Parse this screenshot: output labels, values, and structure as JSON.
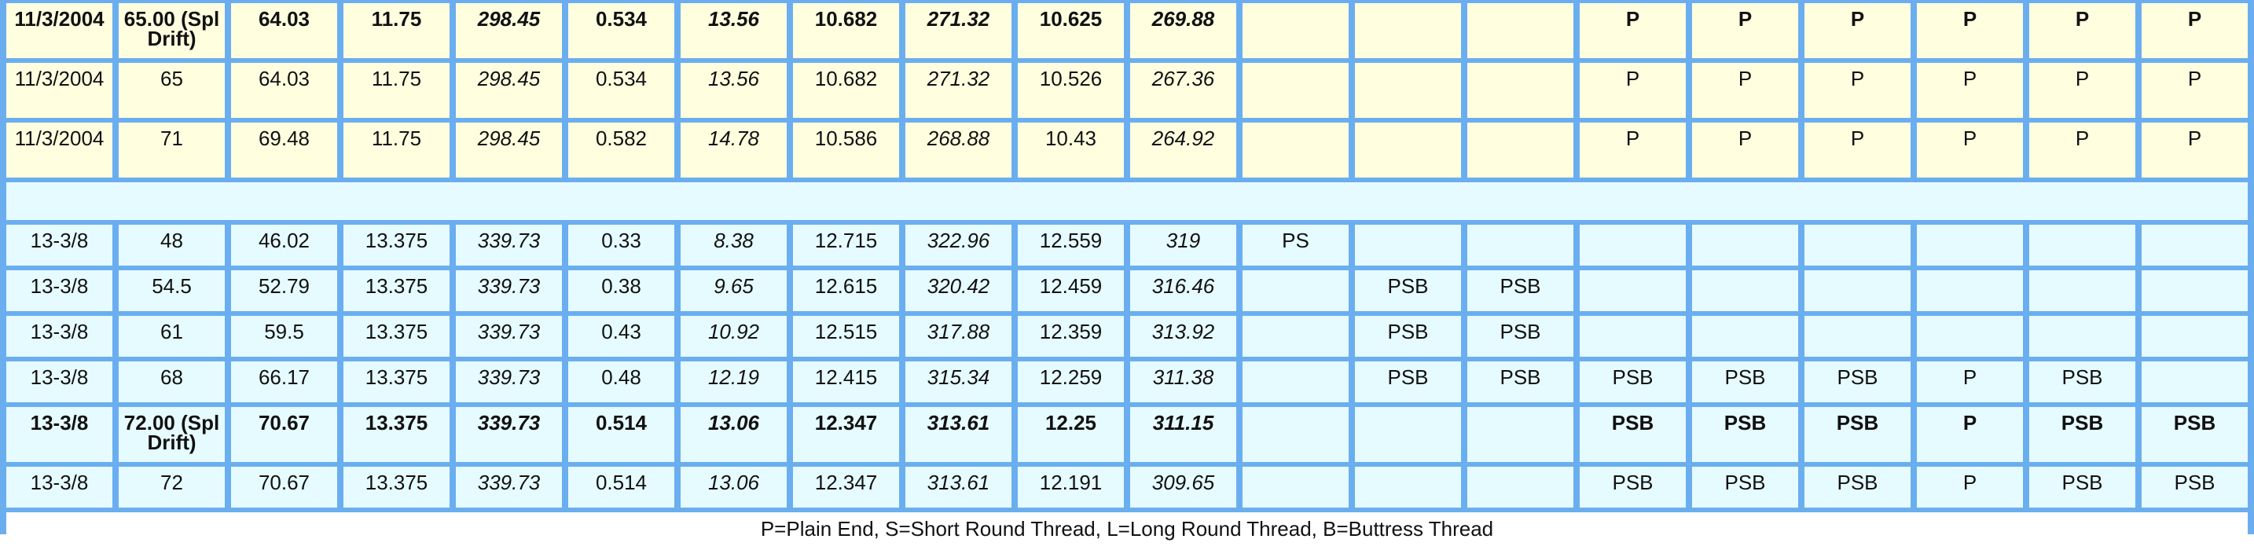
{
  "rows": [
    {
      "style": "yellow",
      "bold": true,
      "cells": [
        "11/3/2004",
        "65.00 (Spl Drift)",
        "64.03",
        "11.75",
        "298.45",
        "0.534",
        "13.56",
        "10.682",
        "271.32",
        "10.625",
        "269.88",
        "",
        "",
        "",
        "P",
        "P",
        "P",
        "P",
        "P",
        "P"
      ]
    },
    {
      "style": "yellow",
      "bold": false,
      "cells": [
        "11/3/2004",
        "65",
        "64.03",
        "11.75",
        "298.45",
        "0.534",
        "13.56",
        "10.682",
        "271.32",
        "10.526",
        "267.36",
        "",
        "",
        "",
        "P",
        "P",
        "P",
        "P",
        "P",
        "P"
      ]
    },
    {
      "style": "yellow",
      "bold": false,
      "cells": [
        "11/3/2004",
        "71",
        "69.48",
        "11.75",
        "298.45",
        "0.582",
        "14.78",
        "10.586",
        "268.88",
        "10.43",
        "264.92",
        "",
        "",
        "",
        "P",
        "P",
        "P",
        "P",
        "P",
        "P"
      ]
    },
    {
      "style": "blank"
    },
    {
      "style": "cyan",
      "bold": false,
      "cells": [
        "13-3/8",
        "48",
        "46.02",
        "13.375",
        "339.73",
        "0.33",
        "8.38",
        "12.715",
        "322.96",
        "12.559",
        "319",
        "PS",
        "",
        "",
        "",
        "",
        "",
        "",
        "",
        ""
      ]
    },
    {
      "style": "cyan",
      "bold": false,
      "cells": [
        "13-3/8",
        "54.5",
        "52.79",
        "13.375",
        "339.73",
        "0.38",
        "9.65",
        "12.615",
        "320.42",
        "12.459",
        "316.46",
        "",
        "PSB",
        "PSB",
        "",
        "",
        "",
        "",
        "",
        ""
      ]
    },
    {
      "style": "cyan",
      "bold": false,
      "cells": [
        "13-3/8",
        "61",
        "59.5",
        "13.375",
        "339.73",
        "0.43",
        "10.92",
        "12.515",
        "317.88",
        "12.359",
        "313.92",
        "",
        "PSB",
        "PSB",
        "",
        "",
        "",
        "",
        "",
        ""
      ]
    },
    {
      "style": "cyan",
      "bold": false,
      "cells": [
        "13-3/8",
        "68",
        "66.17",
        "13.375",
        "339.73",
        "0.48",
        "12.19",
        "12.415",
        "315.34",
        "12.259",
        "311.38",
        "",
        "PSB",
        "PSB",
        "PSB",
        "PSB",
        "PSB",
        "P",
        "PSB",
        ""
      ]
    },
    {
      "style": "cyan",
      "tall": true,
      "bold": true,
      "cells": [
        "13-3/8",
        "72.00 (Spl Drift)",
        "70.67",
        "13.375",
        "339.73",
        "0.514",
        "13.06",
        "12.347",
        "313.61",
        "12.25",
        "311.15",
        "",
        "",
        "",
        "PSB",
        "PSB",
        "PSB",
        "P",
        "PSB",
        "PSB"
      ]
    },
    {
      "style": "cyan",
      "bold": false,
      "cells": [
        "13-3/8",
        "72",
        "70.67",
        "13.375",
        "339.73",
        "0.514",
        "13.06",
        "12.347",
        "313.61",
        "12.191",
        "309.65",
        "",
        "",
        "",
        "PSB",
        "PSB",
        "PSB",
        "P",
        "PSB",
        "PSB"
      ]
    }
  ],
  "footnote": "P=Plain End, S=Short Round Thread, L=Long Round Thread, B=Buttress Thread",
  "colors": {
    "border": "#6aaef0",
    "yellow_row": "#ffffe0",
    "cyan_row": "#e6fbff"
  }
}
